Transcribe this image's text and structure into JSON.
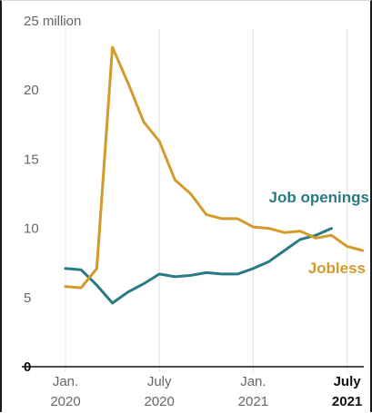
{
  "chart_data": {
    "type": "line",
    "title": "",
    "xlabel": "",
    "ylabel": "",
    "y_unit_label": "25 million",
    "ylim": [
      0,
      25
    ],
    "yticks": [
      0,
      5,
      10,
      15,
      20,
      25
    ],
    "grid": "vertical",
    "x": [
      "2020-01",
      "2020-02",
      "2020-03",
      "2020-04",
      "2020-05",
      "2020-06",
      "2020-07",
      "2020-08",
      "2020-09",
      "2020-10",
      "2020-11",
      "2020-12",
      "2021-01",
      "2021-02",
      "2021-03",
      "2021-04",
      "2021-05",
      "2021-06",
      "2021-07",
      "2021-08"
    ],
    "x_tick_labels": [
      {
        "x": "2020-01",
        "line1": "Jan.",
        "line2": "2020",
        "bold": false
      },
      {
        "x": "2020-07",
        "line1": "July",
        "line2": "2020",
        "bold": false
      },
      {
        "x": "2021-01",
        "line1": "Jan.",
        "line2": "2021",
        "bold": false
      },
      {
        "x": "2021-07",
        "line1": "July",
        "line2": "2021",
        "bold": true
      }
    ],
    "series": [
      {
        "name": "Job openings",
        "color": "#2a7a86",
        "values": [
          7.1,
          7.0,
          5.9,
          4.6,
          5.4,
          6.0,
          6.7,
          6.5,
          6.6,
          6.8,
          6.7,
          6.7,
          7.1,
          7.6,
          8.4,
          9.2,
          9.5,
          10.0,
          null,
          null
        ]
      },
      {
        "name": "Jobless",
        "color": "#d49a2c",
        "values": [
          5.8,
          5.7,
          7.1,
          23.1,
          20.5,
          17.7,
          16.3,
          13.5,
          12.5,
          11.0,
          10.7,
          10.7,
          10.1,
          10.0,
          9.7,
          9.8,
          9.3,
          9.5,
          8.7,
          8.4
        ]
      }
    ]
  }
}
